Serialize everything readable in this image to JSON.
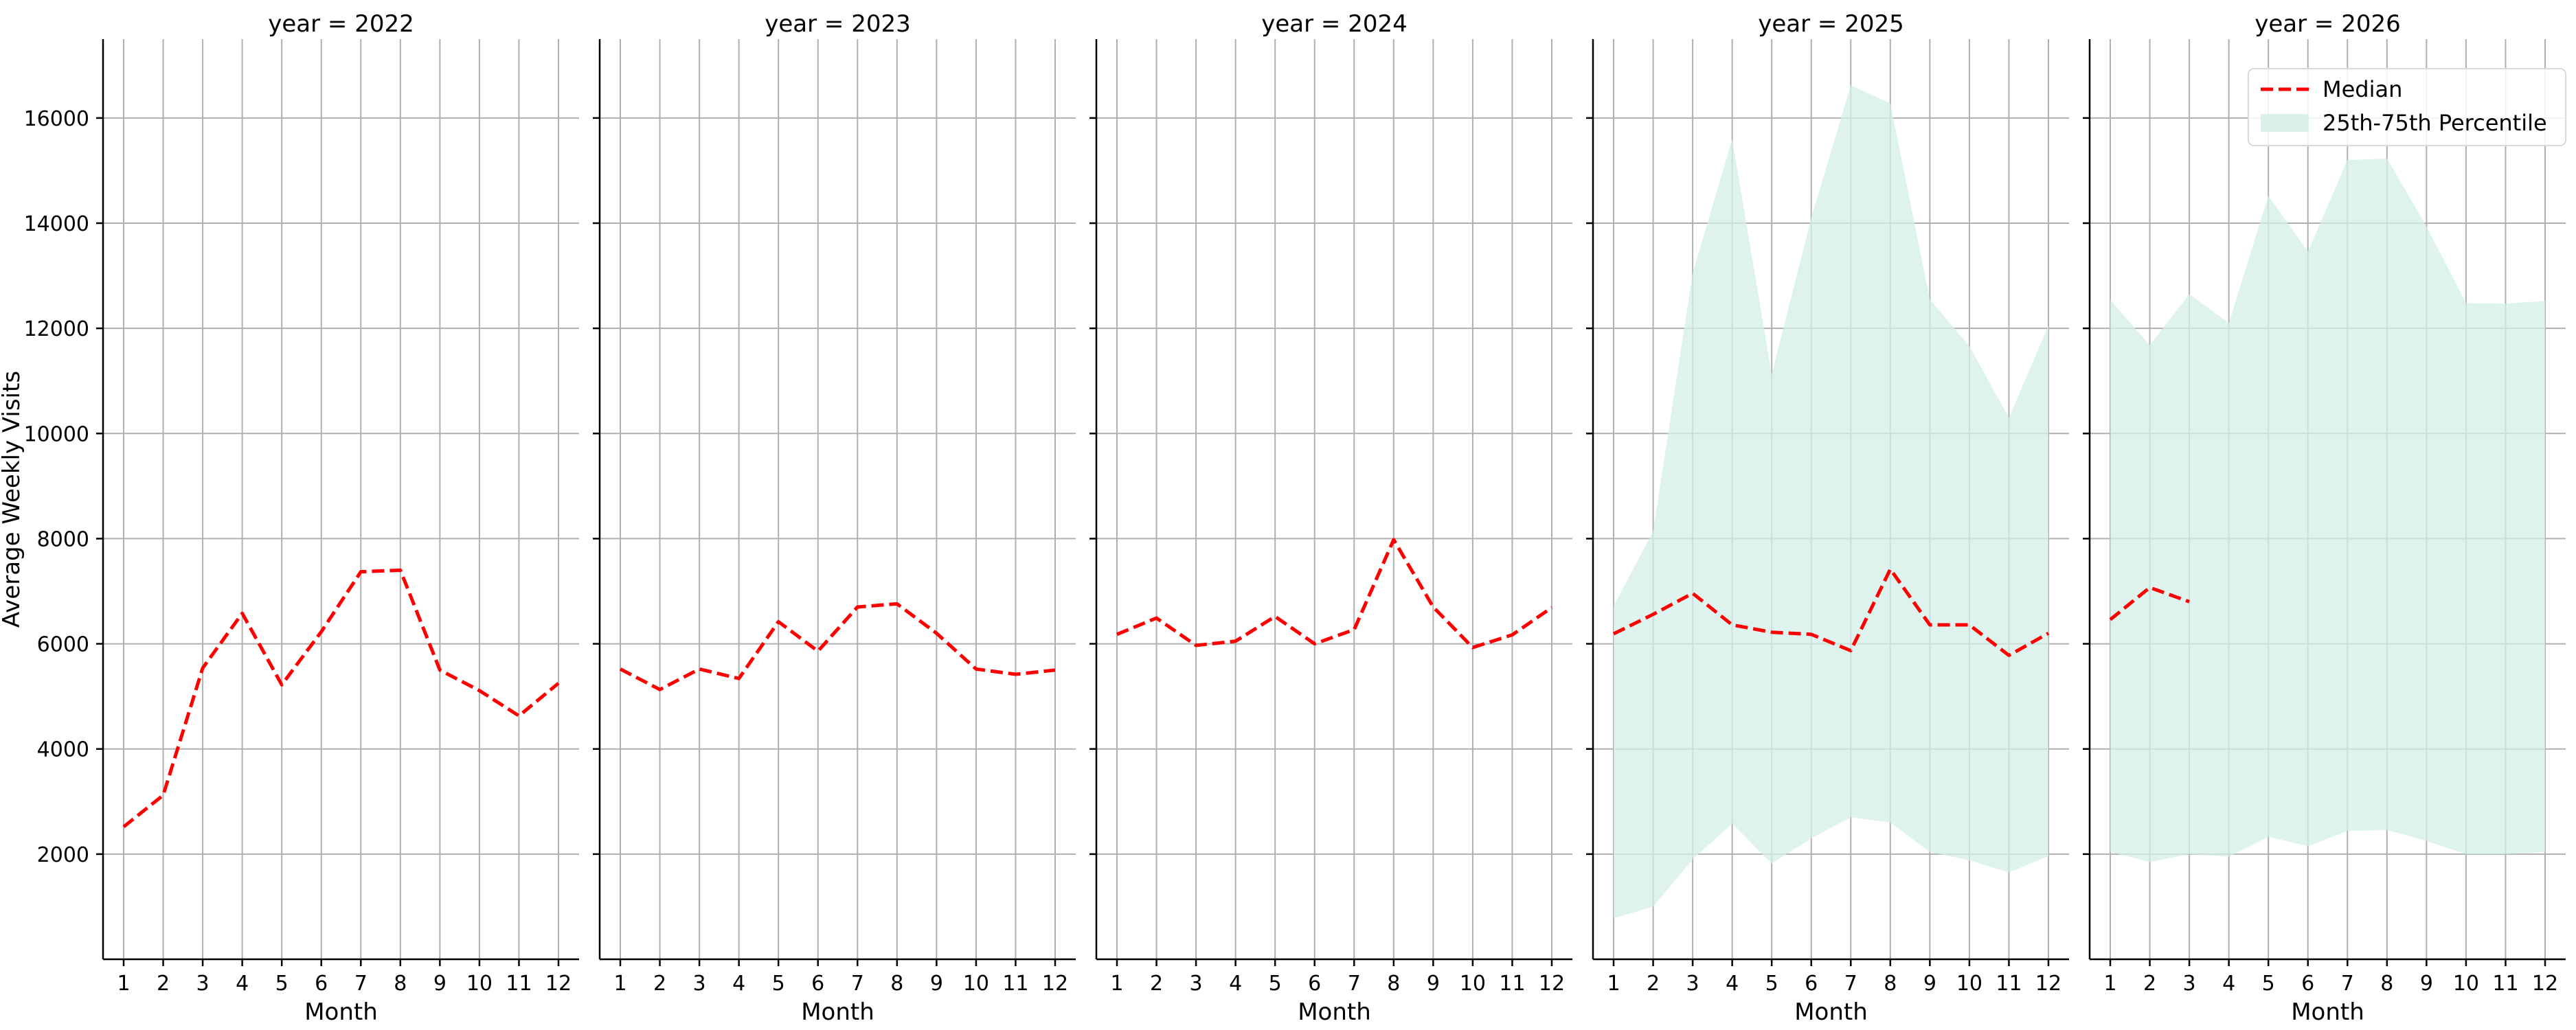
{
  "chart_data": {
    "type": "line",
    "ylabel": "Average Weekly Visits",
    "xlabel": "Month",
    "x": [
      1,
      2,
      3,
      4,
      5,
      6,
      7,
      8,
      9,
      10,
      11,
      12
    ],
    "ylim": [
      0,
      17500
    ],
    "yticks": [
      2000,
      4000,
      6000,
      8000,
      10000,
      12000,
      14000,
      16000
    ],
    "grid": true,
    "legend": {
      "placement": "top-right of last panel",
      "entries": [
        "Median",
        "25th-75th Percentile"
      ]
    },
    "colors": {
      "median": "#ff0000",
      "band": "#d4efe8"
    },
    "panels": [
      {
        "title": "year = 2022",
        "median": [
          2520,
          3120,
          5540,
          6580,
          5220,
          6230,
          7370,
          7400,
          5500,
          5110,
          4630,
          5250
        ],
        "p25": null,
        "p75": null
      },
      {
        "title": "year = 2023",
        "median": [
          5520,
          5130,
          5520,
          5340,
          6420,
          5860,
          6700,
          6760,
          6200,
          5520,
          5420,
          5500
        ],
        "p25": null,
        "p75": null
      },
      {
        "title": "year = 2024",
        "median": [
          6180,
          6490,
          5970,
          6050,
          6520,
          6000,
          6270,
          7980,
          6700,
          5930,
          6170,
          6690
        ],
        "p25": null,
        "p75": null
      },
      {
        "title": "year = 2025",
        "median": [
          6190,
          6560,
          6960,
          6360,
          6220,
          6180,
          5870,
          7420,
          6360,
          6360,
          5780,
          6200
        ],
        "p25": [
          780,
          1000,
          1900,
          2580,
          1820,
          2300,
          2700,
          2600,
          2040,
          1880,
          1650,
          1960
        ],
        "p75": [
          6720,
          8140,
          13050,
          15600,
          11120,
          14100,
          16620,
          16280,
          12550,
          11660,
          10300,
          12050
        ]
      },
      {
        "title": "year = 2026",
        "median": [
          6460,
          7070,
          6800,
          null,
          null,
          null,
          null,
          null,
          null,
          null,
          null,
          null
        ],
        "p25": [
          2040,
          1850,
          2000,
          1950,
          2330,
          2150,
          2440,
          2460,
          2250,
          2000,
          2000,
          2040
        ],
        "p75": [
          12540,
          11680,
          12650,
          12100,
          14520,
          13460,
          15200,
          15230,
          13940,
          12480,
          12470,
          12520
        ]
      }
    ]
  }
}
